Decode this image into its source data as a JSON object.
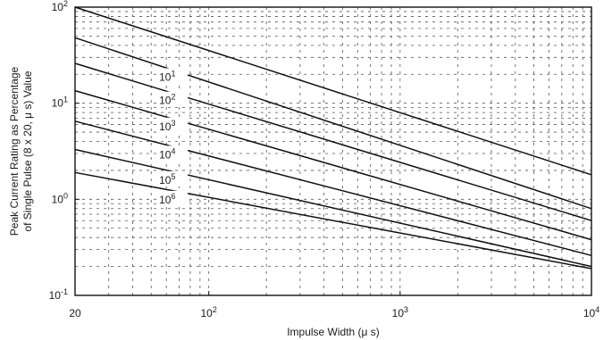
{
  "chart_data": {
    "type": "line",
    "xlabel": "Impulse Width (μ s)",
    "ylabel_lines": [
      "Peak Current Rating as Percentage",
      "of Single Pulse (8 x 20, μ s) Value"
    ],
    "xscale": "log",
    "yscale": "log",
    "xlim": [
      20,
      10000
    ],
    "ylim": [
      0.1,
      100
    ],
    "grid": true,
    "x_ticks": [
      {
        "value": 20,
        "base": "20",
        "exp": ""
      },
      {
        "value": 100,
        "base": "10",
        "exp": "2"
      },
      {
        "value": 1000,
        "base": "10",
        "exp": "3"
      },
      {
        "value": 10000,
        "base": "10",
        "exp": "4"
      }
    ],
    "y_ticks": [
      {
        "value": 0.1,
        "base": "10",
        "exp": "-1"
      },
      {
        "value": 1,
        "base": "10",
        "exp": "0"
      },
      {
        "value": 10,
        "base": "10",
        "exp": "1"
      },
      {
        "value": 100,
        "base": "10",
        "exp": "2"
      }
    ],
    "series": [
      {
        "base": "",
        "exp": "",
        "x": [
          20,
          10000
        ],
        "y": [
          100,
          1.8
        ]
      },
      {
        "base": "10",
        "exp": "1",
        "x": [
          20,
          10000
        ],
        "y": [
          48,
          0.8
        ]
      },
      {
        "base": "10",
        "exp": "2",
        "x": [
          20,
          10000
        ],
        "y": [
          26,
          0.6
        ]
      },
      {
        "base": "10",
        "exp": "3",
        "x": [
          20,
          10000
        ],
        "y": [
          13.5,
          0.38
        ]
      },
      {
        "base": "10",
        "exp": "4",
        "x": [
          20,
          10000
        ],
        "y": [
          6.5,
          0.26
        ]
      },
      {
        "base": "10",
        "exp": "5",
        "x": [
          20,
          10000
        ],
        "y": [
          3.3,
          0.2
        ]
      },
      {
        "base": "10",
        "exp": "6",
        "x": [
          20,
          10000
        ],
        "y": [
          1.9,
          0.19
        ]
      }
    ]
  }
}
